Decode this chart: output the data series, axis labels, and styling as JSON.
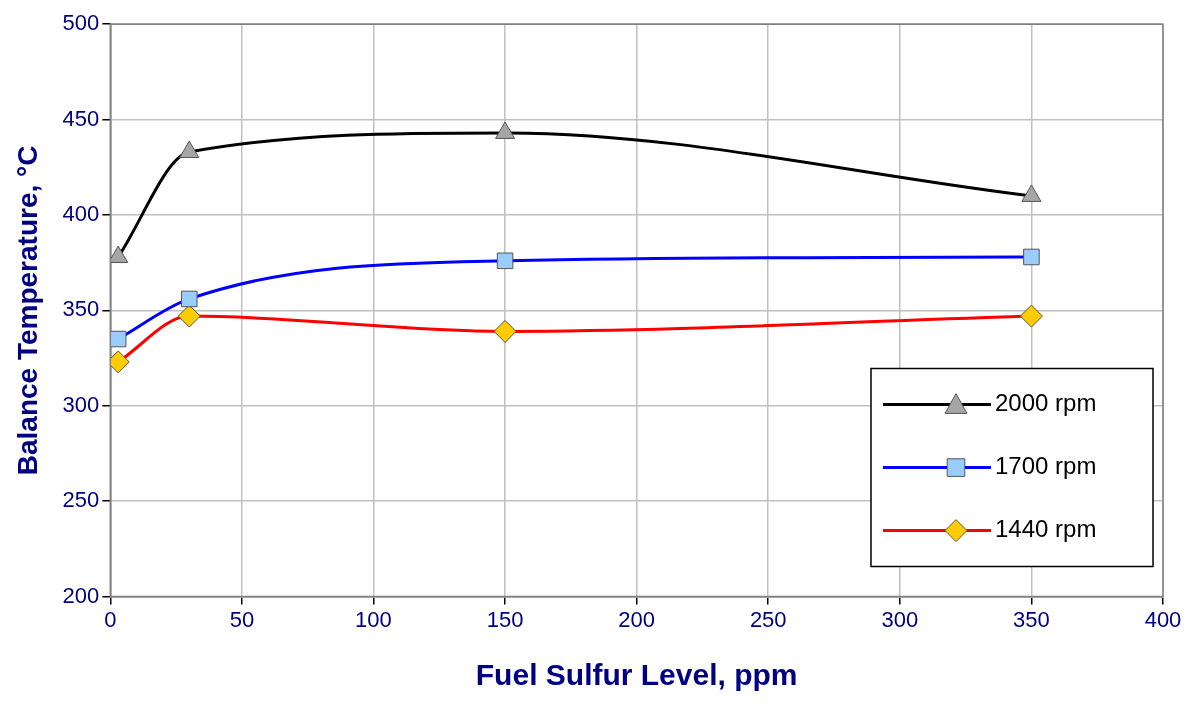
{
  "chart_data": {
    "type": "line",
    "xlabel": "Fuel Sulfur Level, ppm",
    "ylabel": "Balance Temperature, °C",
    "x": [
      3,
      30,
      150,
      350
    ],
    "series": [
      {
        "name": "2000 rpm",
        "color": "#000000",
        "marker": "triangle",
        "values": [
          378,
          433,
          443,
          410
        ]
      },
      {
        "name": "1700 rpm",
        "color": "#0000ff",
        "marker": "square",
        "values": [
          335,
          356,
          376,
          378
        ]
      },
      {
        "name": "1440 rpm",
        "color": "#ff0000",
        "marker": "diamond",
        "values": [
          323,
          347,
          339,
          347
        ]
      }
    ],
    "xlim": [
      0,
      400
    ],
    "xticks": [
      0,
      50,
      100,
      150,
      200,
      250,
      300,
      350,
      400
    ],
    "ylim": [
      200,
      500
    ],
    "yticks": [
      200,
      250,
      300,
      350,
      400,
      450,
      500
    ],
    "grid": true,
    "legend": "bottom right",
    "line_style": "solid"
  }
}
